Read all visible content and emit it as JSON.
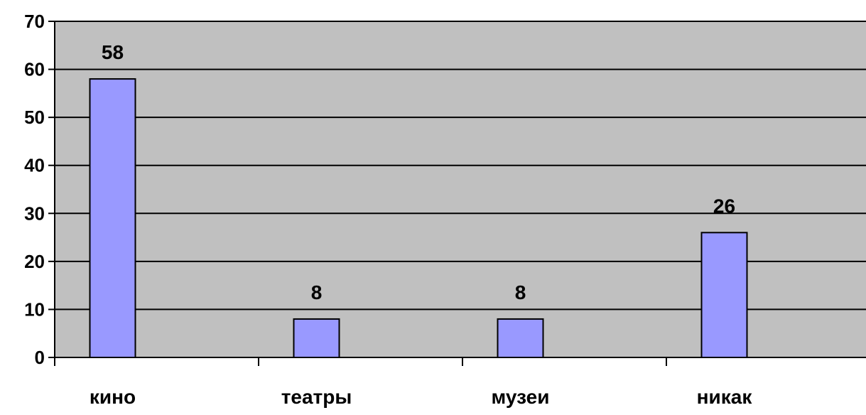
{
  "chart_data": {
    "type": "bar",
    "categories": [
      "кино",
      "театры",
      "музеи",
      "никак"
    ],
    "values": [
      58,
      8,
      8,
      26
    ],
    "data_labels": [
      "58",
      "8",
      "8",
      "26"
    ],
    "ylim": [
      0,
      70
    ],
    "yticks": [
      0,
      10,
      20,
      30,
      40,
      50,
      60,
      70
    ],
    "ytick_labels": [
      "0",
      "10",
      "20",
      "30",
      "40",
      "50",
      "60",
      "70"
    ],
    "grid": true,
    "legend": "none",
    "colors": {
      "plot_background": "#c0c0c0",
      "bar_fill": "#9999ff",
      "bar_stroke": "#000000",
      "grid_line": "#000000"
    }
  }
}
